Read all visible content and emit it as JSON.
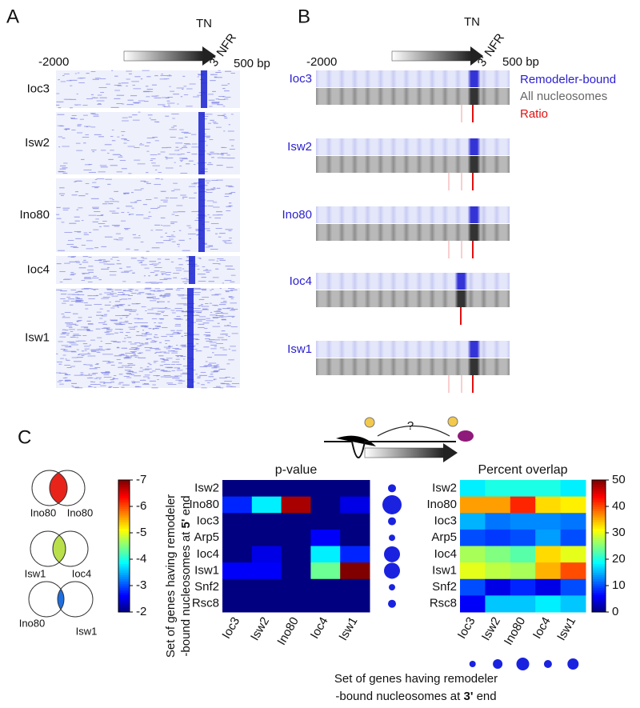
{
  "panel_labels": [
    "A",
    "B",
    "C"
  ],
  "panel_a": {
    "x_start": "-2000",
    "x_end": "500 bp",
    "tn": "TN",
    "nfr": "3' NFR",
    "rows": [
      "Ioc3",
      "Isw2",
      "Ino80",
      "Ioc4",
      "Isw1"
    ]
  },
  "panel_b": {
    "x_start": "-2000",
    "x_end": "500 bp",
    "tn": "TN",
    "nfr": "3' NFR",
    "rows": [
      "Ioc3",
      "Isw2",
      "Ino80",
      "Ioc4",
      "Isw1"
    ],
    "legend": [
      "Remodeler-bound",
      "All nucleosomes",
      "Ratio"
    ]
  },
  "panel_c": {
    "question": "?",
    "venn": [
      {
        "left": "Ino80",
        "right": "Ino80"
      },
      {
        "left": "Isw1",
        "right": "Ioc4"
      },
      {
        "left": "Ino80",
        "right": "Isw1"
      }
    ],
    "y_label": [
      "Set of genes having remodeler",
      "-bound nucleosomes at ",
      "5'",
      " end"
    ],
    "x_label": [
      "Set of genes having remodeler",
      "-bound nucleosomes at ",
      "3'",
      " end"
    ]
  },
  "chart_data": [
    {
      "type": "heatmap",
      "title": "p-value",
      "rows": [
        "Isw2",
        "Ino80",
        "Ioc3",
        "Arp5",
        "Ioc4",
        "Isw1",
        "Snf2",
        "Rsc8"
      ],
      "columns": [
        "Ioc3",
        "Isw2",
        "Ino80",
        "Ioc4",
        "Isw1"
      ],
      "values": [
        [
          -2,
          -2,
          -2,
          -2,
          -2
        ],
        [
          -2.8,
          -3.8,
          -6.8,
          -2,
          -2.5
        ],
        [
          -2,
          -2,
          -2,
          -2,
          -2
        ],
        [
          -2,
          -2,
          -2,
          -2.6,
          -2
        ],
        [
          -2,
          -2.5,
          -2,
          -3.8,
          -2.8
        ],
        [
          -2.6,
          -2.6,
          -2,
          -4.4,
          -7
        ],
        [
          -2,
          -2,
          -2,
          -2,
          -2
        ],
        [
          -2,
          -2,
          -2,
          -2,
          -2
        ]
      ],
      "clim": [
        -2,
        -7
      ],
      "cticks": [
        -7,
        -6,
        -5,
        -4,
        -3,
        -2
      ],
      "colormap": "jet"
    },
    {
      "type": "heatmap",
      "title": "Percent overlap",
      "rows": [
        "Isw2",
        "Ino80",
        "Ioc3",
        "Arp5",
        "Ioc4",
        "Isw1",
        "Snf2",
        "Rsc8"
      ],
      "columns": [
        "Ioc3",
        "Isw2",
        "Ino80",
        "Ioc4",
        "Isw1"
      ],
      "values": [
        [
          18,
          20,
          20,
          20,
          18
        ],
        [
          36,
          36,
          42,
          33,
          32
        ],
        [
          15,
          12,
          13,
          13,
          12
        ],
        [
          10,
          9,
          10,
          14,
          10
        ],
        [
          27,
          25,
          23,
          33,
          30
        ],
        [
          30,
          28,
          27,
          35,
          40
        ],
        [
          10,
          5,
          8,
          5,
          10
        ],
        [
          6,
          16,
          16,
          18,
          16
        ]
      ],
      "clim": [
        0,
        50
      ],
      "cticks": [
        0,
        10,
        20,
        30,
        40,
        50
      ],
      "colormap": "jet",
      "row_sizes": [
        5,
        12,
        5,
        4,
        10,
        10,
        4,
        5
      ],
      "column_sizes": [
        4,
        6,
        8,
        5,
        7
      ]
    }
  ]
}
